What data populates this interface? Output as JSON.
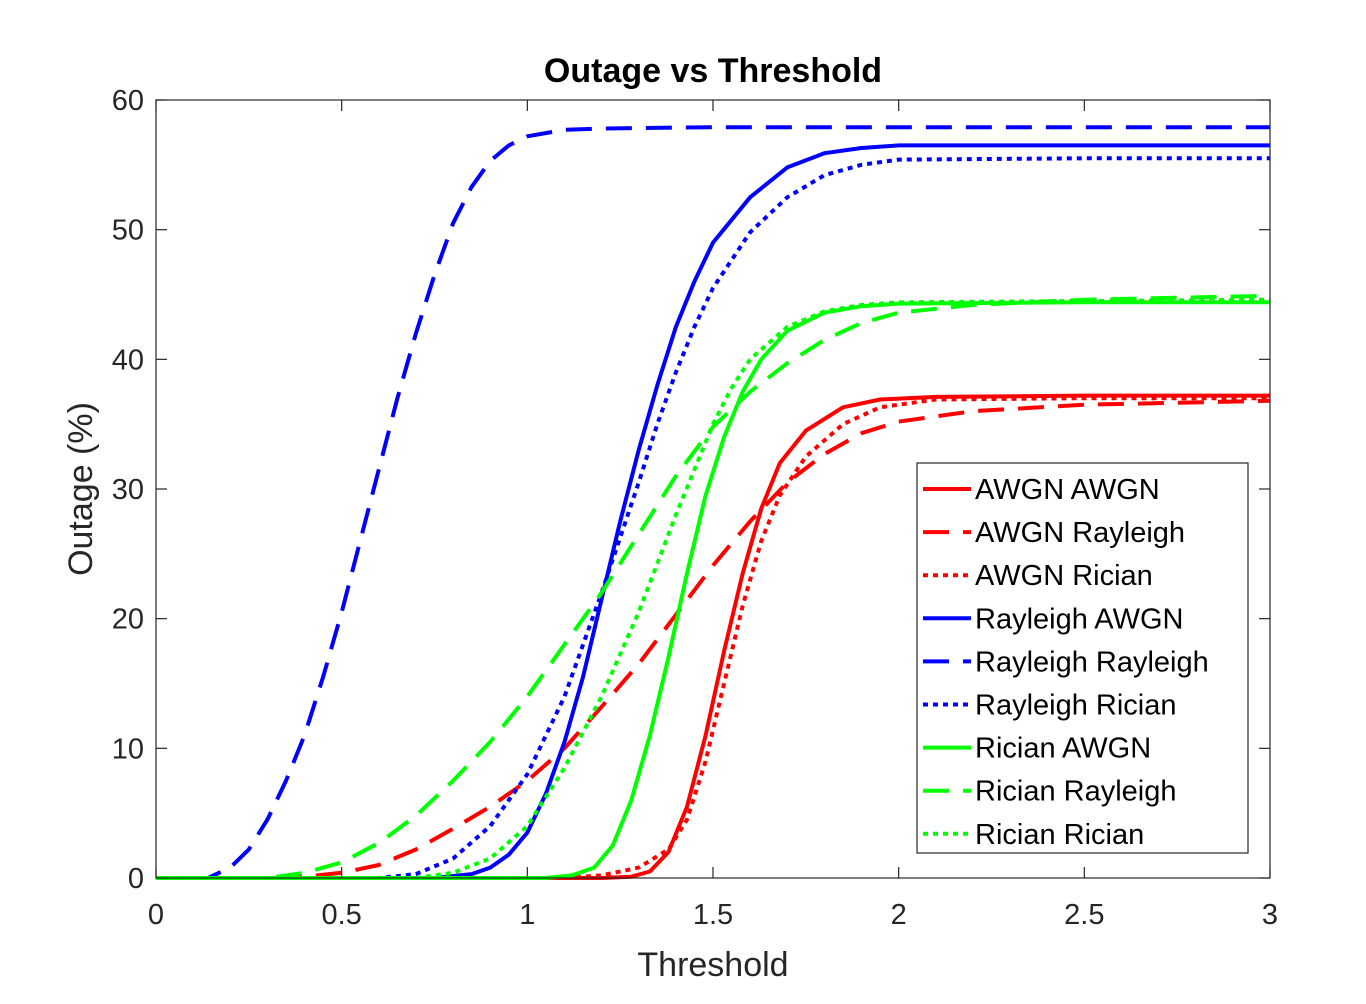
{
  "chart_data": {
    "type": "line",
    "title": "Outage vs Threshold",
    "xlabel": "Threshold",
    "ylabel": "Outage (%)",
    "xlim": [
      0,
      3
    ],
    "ylim": [
      0,
      60
    ],
    "xticks": [
      0,
      0.5,
      1,
      1.5,
      2,
      2.5,
      3
    ],
    "xtick_labels": [
      "0",
      "0.5",
      "1",
      "1.5",
      "2",
      "2.5",
      "3"
    ],
    "yticks": [
      0,
      10,
      20,
      30,
      40,
      50,
      60
    ],
    "ytick_labels": [
      "0",
      "10",
      "20",
      "30",
      "40",
      "50",
      "60"
    ],
    "grid": false,
    "legend_position": "bottom-right",
    "series": [
      {
        "name": "AWGN AWGN",
        "color": "#ff0000",
        "style": "solid",
        "points": [
          [
            0,
            0
          ],
          [
            1.2,
            0
          ],
          [
            1.28,
            0.1
          ],
          [
            1.33,
            0.5
          ],
          [
            1.38,
            2
          ],
          [
            1.43,
            5.5
          ],
          [
            1.48,
            11
          ],
          [
            1.53,
            17.5
          ],
          [
            1.58,
            23.5
          ],
          [
            1.63,
            28.5
          ],
          [
            1.68,
            32
          ],
          [
            1.75,
            34.5
          ],
          [
            1.85,
            36.3
          ],
          [
            1.95,
            36.9
          ],
          [
            2.1,
            37.1
          ],
          [
            2.5,
            37.2
          ],
          [
            3,
            37.2
          ]
        ]
      },
      {
        "name": "AWGN Rayleigh",
        "color": "#ff0000",
        "style": "dashed",
        "points": [
          [
            0,
            0
          ],
          [
            0.3,
            0
          ],
          [
            0.4,
            0.1
          ],
          [
            0.5,
            0.4
          ],
          [
            0.6,
            1
          ],
          [
            0.7,
            2.2
          ],
          [
            0.8,
            3.8
          ],
          [
            0.9,
            5.5
          ],
          [
            1,
            7.5
          ],
          [
            1.1,
            10
          ],
          [
            1.2,
            13.2
          ],
          [
            1.3,
            16.5
          ],
          [
            1.4,
            20.3
          ],
          [
            1.5,
            24.1
          ],
          [
            1.6,
            27.5
          ],
          [
            1.7,
            30.5
          ],
          [
            1.8,
            32.7
          ],
          [
            1.9,
            34.3
          ],
          [
            2,
            35.2
          ],
          [
            2.2,
            36
          ],
          [
            2.5,
            36.5
          ],
          [
            3,
            36.8
          ]
        ]
      },
      {
        "name": "AWGN Rician",
        "color": "#ff0000",
        "style": "dotted",
        "points": [
          [
            0,
            0
          ],
          [
            1.1,
            0
          ],
          [
            1.2,
            0.2
          ],
          [
            1.3,
            0.8
          ],
          [
            1.38,
            2.2
          ],
          [
            1.43,
            4.5
          ],
          [
            1.48,
            9
          ],
          [
            1.53,
            15
          ],
          [
            1.58,
            21
          ],
          [
            1.63,
            26
          ],
          [
            1.68,
            29.5
          ],
          [
            1.75,
            32.5
          ],
          [
            1.85,
            35
          ],
          [
            1.95,
            36.3
          ],
          [
            2.1,
            36.9
          ],
          [
            2.5,
            37
          ],
          [
            3,
            37
          ]
        ]
      },
      {
        "name": "Rayleigh AWGN",
        "color": "#0000ff",
        "style": "solid",
        "points": [
          [
            0,
            0
          ],
          [
            0.75,
            0
          ],
          [
            0.85,
            0.3
          ],
          [
            0.9,
            0.8
          ],
          [
            0.95,
            1.8
          ],
          [
            1,
            3.5
          ],
          [
            1.05,
            6.5
          ],
          [
            1.1,
            10.5
          ],
          [
            1.15,
            15.5
          ],
          [
            1.2,
            21.5
          ],
          [
            1.25,
            27.5
          ],
          [
            1.3,
            33
          ],
          [
            1.35,
            38
          ],
          [
            1.4,
            42.5
          ],
          [
            1.45,
            46
          ],
          [
            1.5,
            49
          ],
          [
            1.6,
            52.5
          ],
          [
            1.7,
            54.8
          ],
          [
            1.8,
            55.9
          ],
          [
            1.9,
            56.3
          ],
          [
            2,
            56.5
          ],
          [
            2.5,
            56.5
          ],
          [
            3,
            56.5
          ]
        ]
      },
      {
        "name": "Rayleigh Rayleigh",
        "color": "#0000ff",
        "style": "dashed",
        "points": [
          [
            0,
            0
          ],
          [
            0.14,
            0
          ],
          [
            0.2,
            0.8
          ],
          [
            0.25,
            2.2
          ],
          [
            0.3,
            4.5
          ],
          [
            0.35,
            7.5
          ],
          [
            0.4,
            11
          ],
          [
            0.45,
            15.5
          ],
          [
            0.5,
            20.5
          ],
          [
            0.55,
            26
          ],
          [
            0.6,
            31.5
          ],
          [
            0.65,
            37
          ],
          [
            0.7,
            42
          ],
          [
            0.75,
            46.5
          ],
          [
            0.8,
            50.5
          ],
          [
            0.85,
            53.3
          ],
          [
            0.9,
            55.3
          ],
          [
            0.95,
            56.5
          ],
          [
            1,
            57.2
          ],
          [
            1.1,
            57.7
          ],
          [
            1.2,
            57.8
          ],
          [
            1.5,
            57.9
          ],
          [
            3,
            57.9
          ]
        ]
      },
      {
        "name": "Rayleigh Rician",
        "color": "#0000ff",
        "style": "dotted",
        "points": [
          [
            0,
            0
          ],
          [
            0.6,
            0
          ],
          [
            0.7,
            0.3
          ],
          [
            0.8,
            1.5
          ],
          [
            0.9,
            4
          ],
          [
            1,
            8
          ],
          [
            1.1,
            14
          ],
          [
            1.2,
            22
          ],
          [
            1.3,
            30.5
          ],
          [
            1.35,
            35
          ],
          [
            1.4,
            39
          ],
          [
            1.45,
            42.5
          ],
          [
            1.5,
            45.5
          ],
          [
            1.6,
            49.8
          ],
          [
            1.7,
            52.5
          ],
          [
            1.8,
            54.2
          ],
          [
            1.9,
            55
          ],
          [
            2,
            55.4
          ],
          [
            2.5,
            55.5
          ],
          [
            3,
            55.5
          ]
        ]
      },
      {
        "name": "Rician AWGN",
        "color": "#00ff00",
        "style": "solid",
        "points": [
          [
            0,
            0
          ],
          [
            1.05,
            0
          ],
          [
            1.12,
            0.2
          ],
          [
            1.18,
            0.8
          ],
          [
            1.23,
            2.5
          ],
          [
            1.28,
            6
          ],
          [
            1.33,
            11
          ],
          [
            1.38,
            17
          ],
          [
            1.43,
            23.5
          ],
          [
            1.48,
            29.5
          ],
          [
            1.53,
            34
          ],
          [
            1.58,
            37.5
          ],
          [
            1.63,
            40
          ],
          [
            1.7,
            42.2
          ],
          [
            1.8,
            43.6
          ],
          [
            1.9,
            44.1
          ],
          [
            2,
            44.3
          ],
          [
            2.5,
            44.4
          ],
          [
            3,
            44.4
          ]
        ]
      },
      {
        "name": "Rician Rayleigh",
        "color": "#00ff00",
        "style": "dashed",
        "points": [
          [
            0,
            0
          ],
          [
            0.3,
            0
          ],
          [
            0.4,
            0.4
          ],
          [
            0.5,
            1.2
          ],
          [
            0.6,
            2.7
          ],
          [
            0.7,
            4.8
          ],
          [
            0.8,
            7.5
          ],
          [
            0.9,
            10.5
          ],
          [
            1,
            14
          ],
          [
            1.1,
            18
          ],
          [
            1.2,
            22
          ],
          [
            1.3,
            26.5
          ],
          [
            1.4,
            31
          ],
          [
            1.5,
            34.8
          ],
          [
            1.6,
            37.5
          ],
          [
            1.7,
            39.7
          ],
          [
            1.8,
            41.5
          ],
          [
            1.9,
            42.8
          ],
          [
            2,
            43.6
          ],
          [
            2.2,
            44.2
          ],
          [
            2.5,
            44.6
          ],
          [
            3,
            44.9
          ]
        ]
      },
      {
        "name": "Rician Rician",
        "color": "#00ff00",
        "style": "dotted",
        "points": [
          [
            0,
            0
          ],
          [
            0.7,
            0
          ],
          [
            0.8,
            0.4
          ],
          [
            0.9,
            1.5
          ],
          [
            1,
            4
          ],
          [
            1.1,
            8.5
          ],
          [
            1.2,
            14
          ],
          [
            1.3,
            20.5
          ],
          [
            1.4,
            28
          ],
          [
            1.5,
            35
          ],
          [
            1.55,
            37.8
          ],
          [
            1.6,
            40
          ],
          [
            1.7,
            42.5
          ],
          [
            1.8,
            43.7
          ],
          [
            1.9,
            44.2
          ],
          [
            2,
            44.4
          ],
          [
            2.5,
            44.5
          ],
          [
            3,
            44.6
          ]
        ]
      }
    ]
  }
}
